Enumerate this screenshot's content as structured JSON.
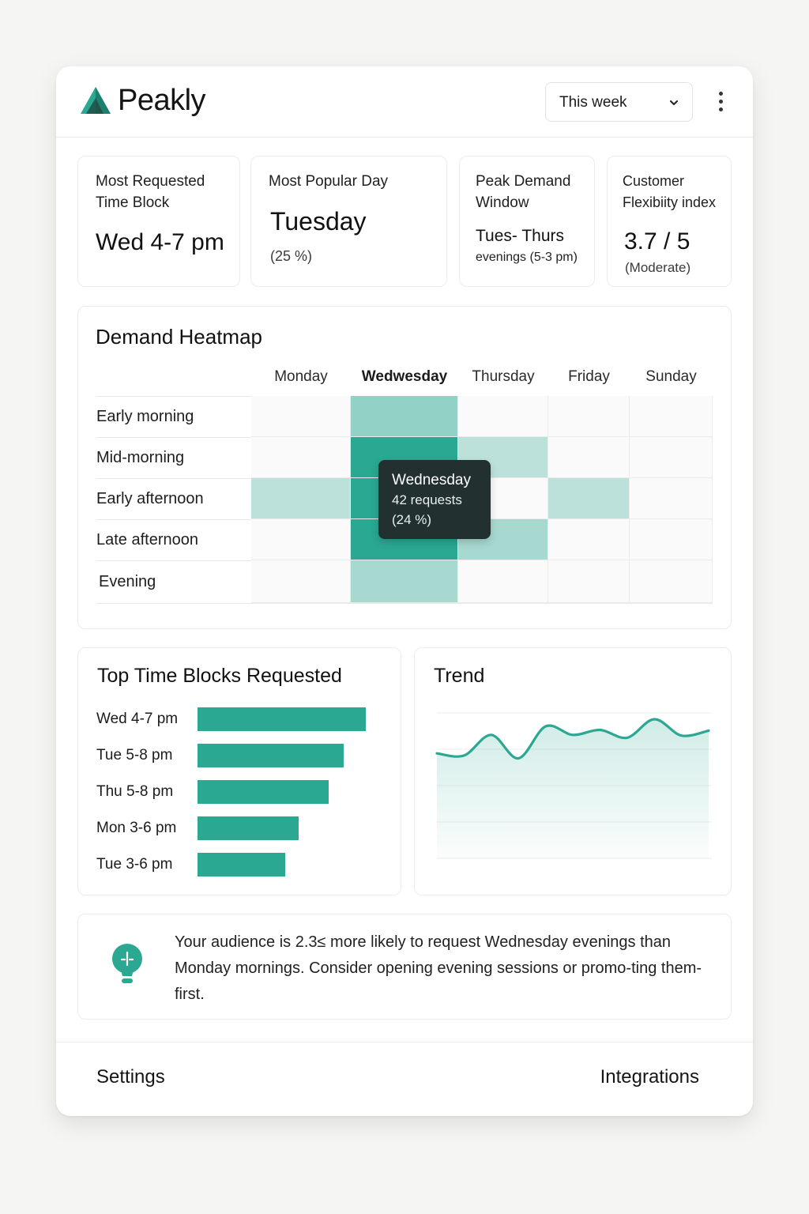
{
  "app": {
    "brand": "Peakly",
    "period_select": "This week",
    "accent_color": "#2aa892",
    "dark_accent": "#22302f"
  },
  "stats": [
    {
      "label_line1": "Most Requested",
      "label_line2": "Time Block",
      "value": "Wed 4-7 pm",
      "sub": ""
    },
    {
      "label_line1": "Most Popular Day",
      "label_line2": "",
      "value": "Tuesday",
      "sub": "(25 %)"
    },
    {
      "label_line1": "Peak Demand",
      "label_line2": "Window",
      "value": "Tues- Thurs",
      "sub": "evenings (5-3 pm)"
    },
    {
      "label_line1": "Customer",
      "label_line2": "Flexibiity index",
      "value": "3.7 / 5",
      "sub": "(Moderate)"
    }
  ],
  "heatmap": {
    "title": "Demand Heatmap",
    "columns": [
      "Monday",
      "Wedwesday",
      "Thursday",
      "Friday",
      "Sunday"
    ],
    "highlight_column": 1,
    "rows": [
      "Early morning",
      "Mid-morning",
      "Early afternoon",
      "Late afternoon",
      "Evening"
    ],
    "intensity": [
      [
        0.0,
        0.5,
        0.0,
        0.0,
        0.0
      ],
      [
        0.0,
        1.0,
        0.3,
        0.0,
        0.0
      ],
      [
        0.3,
        1.0,
        0.0,
        0.3,
        0.0
      ],
      [
        0.0,
        1.0,
        0.4,
        0.0,
        0.0
      ],
      [
        0.0,
        0.4,
        0.0,
        0.0,
        0.0
      ]
    ],
    "tooltip": {
      "title": "Wednesday",
      "line1": "42 requests",
      "line2": "(24 %)"
    }
  },
  "top_blocks": {
    "title": "Top Time Blocks Requested",
    "items": [
      {
        "label": "Wed 4-7 pm",
        "value": 1.0
      },
      {
        "label": "Tue 5-8 pm",
        "value": 0.87
      },
      {
        "label": "Thu 5-8 pm",
        "value": 0.78
      },
      {
        "label": "Mon 3-6 pm",
        "value": 0.6
      },
      {
        "label": "Tue 3-6 pm",
        "value": 0.52
      }
    ]
  },
  "trend": {
    "title": "Trend",
    "values": [
      0.52,
      0.49,
      0.78,
      0.45,
      0.9,
      0.78,
      0.85,
      0.74,
      1.0,
      0.77,
      0.84
    ]
  },
  "insight": {
    "text": "Your audience is 2.3≤ more likely to request Wednesday evenings than Monday mornings. Consider opening evening sessions or promo-ting them-first."
  },
  "footer": {
    "settings": "Settings",
    "integrations": "Integrations"
  }
}
